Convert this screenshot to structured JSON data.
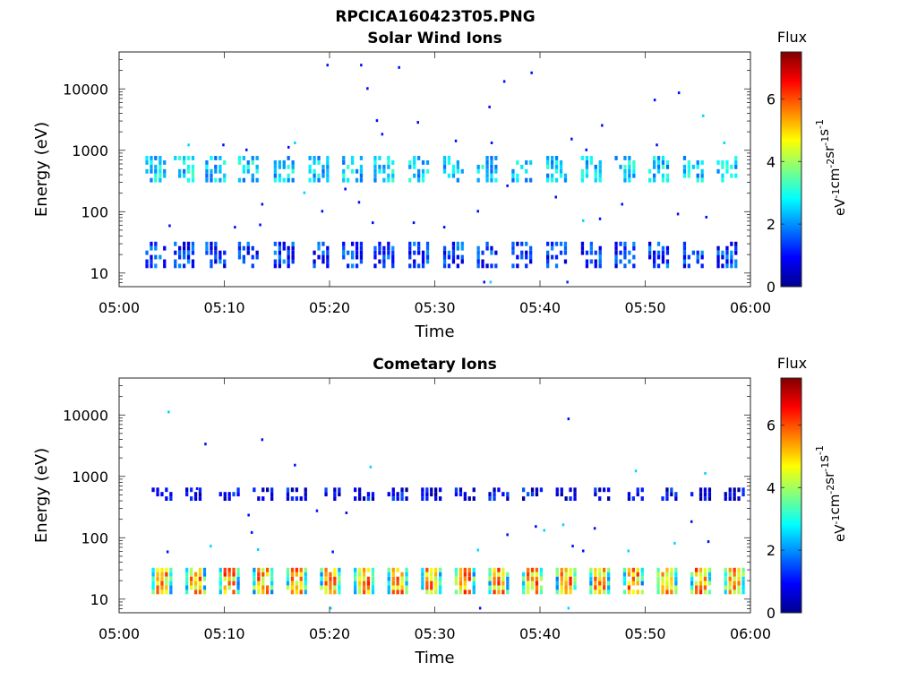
{
  "figure": {
    "filename": "RPCICA160423T05.PNG"
  },
  "colorscale": {
    "colors": [
      "#00008f",
      "#0000ff",
      "#0080ff",
      "#00ffff",
      "#80ff80",
      "#ffff00",
      "#ff8000",
      "#ff0000",
      "#800000"
    ]
  },
  "chart_data": [
    {
      "type": "heatmap",
      "title": "Solar Wind Ions",
      "xlabel": "Time",
      "ylabel": "Energy (eV)",
      "yscale": "log",
      "ylim": [
        6,
        40000
      ],
      "xlim": [
        "05:00",
        "06:00"
      ],
      "xticks": [
        "05:00",
        "05:10",
        "05:20",
        "05:30",
        "05:40",
        "05:50",
        "06:00"
      ],
      "yticks": [
        {
          "value": 10,
          "label": "10"
        },
        {
          "value": 100,
          "label": "100"
        },
        {
          "value": 1000,
          "label": "1000"
        },
        {
          "value": 10000,
          "label": "10000"
        }
      ],
      "colorbar": {
        "title": "Flux",
        "unit": "eV-1cm-2sr-1s-1",
        "range": [
          0,
          7.5
        ],
        "ticks": [
          "0",
          "2",
          "4",
          "6"
        ]
      },
      "scan_times_min": [
        3.5,
        6.2,
        9.2,
        12.3,
        15.7,
        19,
        22.2,
        25.2,
        28.5,
        31.8,
        35,
        38.3,
        41.6,
        44.9,
        48.1,
        51.3,
        54.6,
        57.8
      ],
      "bands": [
        {
          "name": "~500 eV",
          "energy_eV": [
            300,
            700
          ],
          "flux": 2.5
        },
        {
          "name": "~20 eV",
          "energy_eV": [
            12,
            30
          ],
          "flux": 1.3
        }
      ],
      "sparse_points": [
        {
          "t": 19.7,
          "e": 24000,
          "flux": 1
        },
        {
          "t": 22.9,
          "e": 24000,
          "flux": 1
        },
        {
          "t": 26.5,
          "e": 22000,
          "flux": 1
        },
        {
          "t": 39.1,
          "e": 18000,
          "flux": 1
        },
        {
          "t": 36.5,
          "e": 13000,
          "flux": 1
        },
        {
          "t": 23.5,
          "e": 10000,
          "flux": 1
        },
        {
          "t": 35.1,
          "e": 5000,
          "flux": 1
        },
        {
          "t": 50.8,
          "e": 6500,
          "flux": 1
        },
        {
          "t": 53.1,
          "e": 8500,
          "flux": 1
        },
        {
          "t": 24.4,
          "e": 3000,
          "flux": 1
        },
        {
          "t": 28.3,
          "e": 2800,
          "flux": 1
        },
        {
          "t": 45.8,
          "e": 2500,
          "flux": 1
        },
        {
          "t": 55.4,
          "e": 3600,
          "flux": 2.5
        },
        {
          "t": 31.9,
          "e": 1400,
          "flux": 1
        },
        {
          "t": 35.3,
          "e": 1300,
          "flux": 1
        },
        {
          "t": 42.9,
          "e": 1500,
          "flux": 1
        },
        {
          "t": 9.8,
          "e": 1200,
          "flux": 1
        },
        {
          "t": 6.5,
          "e": 1200,
          "flux": 2.5
        },
        {
          "t": 16.6,
          "e": 1300,
          "flux": 2.5
        },
        {
          "t": 51.0,
          "e": 1200,
          "flux": 1
        },
        {
          "t": 57.4,
          "e": 1300,
          "flux": 2.5
        },
        {
          "t": 12.0,
          "e": 1000,
          "flux": 1
        },
        {
          "t": 44.3,
          "e": 1000,
          "flux": 1
        },
        {
          "t": 16.0,
          "e": 1100,
          "flux": 1
        },
        {
          "t": 24.9,
          "e": 1800,
          "flux": 1
        },
        {
          "t": 4.7,
          "e": 58,
          "flux": 1
        },
        {
          "t": 10.9,
          "e": 55,
          "flux": 1
        },
        {
          "t": 13.3,
          "e": 60,
          "flux": 1
        },
        {
          "t": 22.7,
          "e": 140,
          "flux": 1
        },
        {
          "t": 19.2,
          "e": 100,
          "flux": 1
        },
        {
          "t": 21.4,
          "e": 230,
          "flux": 1
        },
        {
          "t": 27.9,
          "e": 65,
          "flux": 1
        },
        {
          "t": 30.8,
          "e": 55,
          "flux": 1
        },
        {
          "t": 34.0,
          "e": 100,
          "flux": 1
        },
        {
          "t": 36.8,
          "e": 260,
          "flux": 1
        },
        {
          "t": 41.4,
          "e": 170,
          "flux": 1
        },
        {
          "t": 45.6,
          "e": 75,
          "flux": 1
        },
        {
          "t": 44.0,
          "e": 70,
          "flux": 2.5
        },
        {
          "t": 47.7,
          "e": 130,
          "flux": 1
        },
        {
          "t": 53.0,
          "e": 90,
          "flux": 1
        },
        {
          "t": 55.7,
          "e": 80,
          "flux": 1
        },
        {
          "t": 13.5,
          "e": 130,
          "flux": 1
        },
        {
          "t": 17.5,
          "e": 200,
          "flux": 2.5
        },
        {
          "t": 24.0,
          "e": 65,
          "flux": 1
        },
        {
          "t": 34.6,
          "e": 7,
          "flux": 1
        },
        {
          "t": 35.2,
          "e": 7,
          "flux": 2.5
        },
        {
          "t": 42.5,
          "e": 7,
          "flux": 1.2
        }
      ]
    },
    {
      "type": "heatmap",
      "title": "Cometary Ions",
      "xlabel": "Time",
      "ylabel": "Energy (eV)",
      "yscale": "log",
      "ylim": [
        6,
        40000
      ],
      "xlim": [
        "05:00",
        "06:00"
      ],
      "xticks": [
        "05:00",
        "05:10",
        "05:20",
        "05:30",
        "05:40",
        "05:50",
        "06:00"
      ],
      "yticks": [
        {
          "value": 10,
          "label": "10"
        },
        {
          "value": 100,
          "label": "100"
        },
        {
          "value": 1000,
          "label": "1000"
        },
        {
          "value": 10000,
          "label": "10000"
        }
      ],
      "colorbar": {
        "title": "Flux",
        "unit": "eV-1cm-2sr-1s-1",
        "range": [
          0,
          7.5
        ],
        "ticks": [
          "0",
          "2",
          "4",
          "6"
        ]
      },
      "scan_times_min": [
        4.1,
        7.3,
        10.5,
        13.7,
        16.9,
        20.1,
        23.3,
        26.5,
        29.7,
        32.9,
        36.1,
        39.3,
        42.5,
        45.7,
        48.9,
        52.1,
        55.3,
        58.5
      ],
      "bands": [
        {
          "name": "~20 eV",
          "energy_eV": [
            12,
            28
          ],
          "flux": 5.2
        },
        {
          "name": "~500 eV",
          "energy_eV": [
            400,
            560
          ],
          "flux": 0.8
        }
      ],
      "sparse_points": [
        {
          "t": 4.6,
          "e": 11000,
          "flux": 2.5
        },
        {
          "t": 42.6,
          "e": 8500,
          "flux": 1
        },
        {
          "t": 13.5,
          "e": 3900,
          "flux": 1
        },
        {
          "t": 8.1,
          "e": 3300,
          "flux": 1
        },
        {
          "t": 16.6,
          "e": 1500,
          "flux": 1
        },
        {
          "t": 23.8,
          "e": 1400,
          "flux": 2.5
        },
        {
          "t": 49.0,
          "e": 1200,
          "flux": 2.5
        },
        {
          "t": 55.6,
          "e": 1100,
          "flux": 2.5
        },
        {
          "t": 7.3,
          "e": 620,
          "flux": 1
        },
        {
          "t": 18.7,
          "e": 270,
          "flux": 1
        },
        {
          "t": 21.5,
          "e": 250,
          "flux": 1
        },
        {
          "t": 12.2,
          "e": 230,
          "flux": 1
        },
        {
          "t": 12.5,
          "e": 120,
          "flux": 1
        },
        {
          "t": 8.6,
          "e": 72,
          "flux": 2.5
        },
        {
          "t": 13.1,
          "e": 63,
          "flux": 2.5
        },
        {
          "t": 20.2,
          "e": 58,
          "flux": 1
        },
        {
          "t": 34.0,
          "e": 62,
          "flux": 2.5
        },
        {
          "t": 36.8,
          "e": 110,
          "flux": 1
        },
        {
          "t": 39.5,
          "e": 150,
          "flux": 1
        },
        {
          "t": 40.3,
          "e": 130,
          "flux": 2.5
        },
        {
          "t": 42.1,
          "e": 160,
          "flux": 2.5
        },
        {
          "t": 43.0,
          "e": 72,
          "flux": 1
        },
        {
          "t": 45.1,
          "e": 140,
          "flux": 1
        },
        {
          "t": 48.3,
          "e": 60,
          "flux": 2.5
        },
        {
          "t": 52.7,
          "e": 80,
          "flux": 2.5
        },
        {
          "t": 54.3,
          "e": 180,
          "flux": 1
        },
        {
          "t": 55.9,
          "e": 85,
          "flux": 1
        },
        {
          "t": 4.5,
          "e": 58,
          "flux": 1
        },
        {
          "t": 44.0,
          "e": 60,
          "flux": 1
        },
        {
          "t": 34.2,
          "e": 7,
          "flux": 1
        },
        {
          "t": 42.6,
          "e": 7,
          "flux": 2.5
        },
        {
          "t": 20.0,
          "e": 7,
          "flux": 2.5
        }
      ]
    }
  ]
}
